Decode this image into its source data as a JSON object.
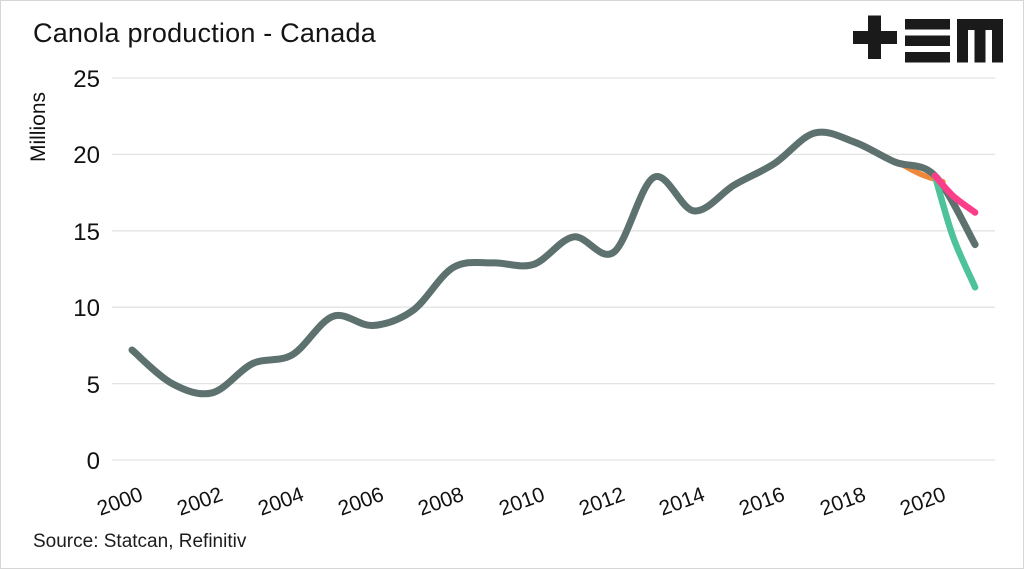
{
  "header": {
    "logo_icon": "plus-triple-bar-m-logo"
  },
  "chart_data": {
    "type": "line",
    "title": "Canola production - Canada",
    "ylabel": "Millions",
    "xlabel": "",
    "source": "Source: Statcan, Refinitiv",
    "ylim": [
      0,
      25
    ],
    "yticks": [
      0,
      5,
      10,
      15,
      20,
      25
    ],
    "xticks": [
      2000,
      2002,
      2004,
      2006,
      2008,
      2010,
      2012,
      2014,
      2016,
      2018,
      2020
    ],
    "xlim": [
      2000,
      2021
    ],
    "grid": "horizontal",
    "legend": "none",
    "colors": {
      "history": "#5d716e",
      "scenario_pink": "#fb3d8a",
      "scenario_gray": "#5d716e",
      "scenario_green": "#4ec29b",
      "scenario_orange": "#f0883a",
      "gridline": "#e3e3e3",
      "text": "#141414"
    },
    "series": [
      {
        "name": "canola-production-history",
        "color": "#5d716e",
        "x": [
          2000,
          2001,
          2002,
          2003,
          2004,
          2005,
          2006,
          2007,
          2008,
          2009,
          2010,
          2011,
          2012,
          2013,
          2014,
          2015,
          2016,
          2017,
          2018,
          2019,
          2020
        ],
        "values": [
          7.2,
          5.0,
          4.4,
          6.3,
          6.9,
          9.4,
          8.8,
          9.8,
          12.6,
          12.9,
          12.8,
          14.6,
          13.6,
          18.5,
          16.3,
          18.0,
          19.4,
          21.4,
          20.8,
          19.5,
          18.6
        ]
      },
      {
        "name": "forecast-scenario-gray",
        "color": "#5d716e",
        "x": [
          2020,
          2021
        ],
        "values": [
          18.6,
          14.1
        ]
      },
      {
        "name": "forecast-scenario-green",
        "color": "#4ec29b",
        "x": [
          2020,
          2021
        ],
        "values": [
          18.6,
          11.3
        ]
      },
      {
        "name": "forecast-scenario-pink",
        "color": "#fb3d8a",
        "x": [
          2020,
          2021
        ],
        "values": [
          18.6,
          16.2
        ]
      },
      {
        "name": "forecast-scenario-orange-partially-hidden",
        "color": "#f0883a",
        "x": [
          2019.2,
          2020.2
        ],
        "values": [
          19.3,
          18.2
        ]
      }
    ]
  }
}
